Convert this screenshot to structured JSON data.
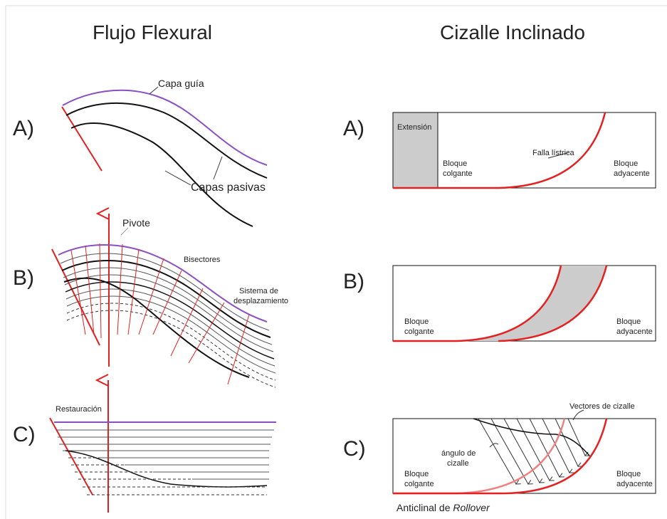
{
  "left": {
    "title": "Flujo Flexural",
    "a": {
      "label": "A)",
      "guide": "Capa guía",
      "passive": "Capas pasivas"
    },
    "b": {
      "label": "B)",
      "pivot": "Pivote",
      "bisectors": "Bisectores",
      "system": [
        "Sistema de",
        "desplazamiento"
      ]
    },
    "c": {
      "label": "C)",
      "restoration": "Restauración"
    }
  },
  "right": {
    "title": "Cizalle Inclinado",
    "a": {
      "label": "A)",
      "extension": "Extensión",
      "hanging": [
        "Bloque",
        "colgante"
      ],
      "fault": "Falla lístrica",
      "footwall": [
        "Bloque",
        "adyacente"
      ]
    },
    "b": {
      "label": "B)",
      "hanging": [
        "Bloque",
        "colgante"
      ],
      "footwall": [
        "Bloque",
        "adyacente"
      ]
    },
    "c": {
      "label": "C)",
      "vectors": "Vectores de cizalle",
      "angle": [
        "ángulo de",
        "cizalle"
      ],
      "hanging": [
        "Bloque",
        "colgante"
      ],
      "footwall": [
        "Bloque",
        "adyacente"
      ],
      "caption": "Anticlinal de",
      "caption_italic": "Rollover"
    }
  }
}
